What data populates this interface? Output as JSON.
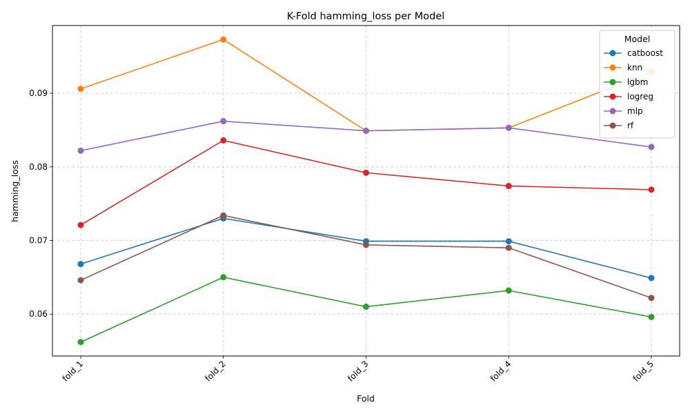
{
  "chart_data": {
    "type": "line",
    "title": "K-Fold hamming_loss per Model",
    "xlabel": "Fold",
    "ylabel": "hamming_loss",
    "categories": [
      "fold_1",
      "fold_2",
      "fold_3",
      "fold_4",
      "fold_5"
    ],
    "ylim": [
      0.0543,
      0.0992
    ],
    "yticks": [
      0.06,
      0.07,
      0.08,
      0.09
    ],
    "ytick_labels": [
      "0.06",
      "0.07",
      "0.08",
      "0.09"
    ],
    "grid": true,
    "legend": {
      "title": "Model",
      "placement": "top-right"
    },
    "series": [
      {
        "name": "catboost",
        "color": "#1f77b4",
        "values": [
          0.0668,
          0.073,
          0.0699,
          0.0699,
          0.0649
        ]
      },
      {
        "name": "knn",
        "color": "#ff7f0e",
        "values": [
          0.0906,
          0.0973,
          0.0849,
          0.0853,
          0.0929
        ]
      },
      {
        "name": "lgbm",
        "color": "#2ca02c",
        "values": [
          0.0562,
          0.065,
          0.061,
          0.0632,
          0.0596
        ]
      },
      {
        "name": "logreg",
        "color": "#d62728",
        "values": [
          0.0721,
          0.0836,
          0.0792,
          0.0774,
          0.0769
        ]
      },
      {
        "name": "mlp",
        "color": "#9467bd",
        "values": [
          0.0822,
          0.0862,
          0.0849,
          0.0853,
          0.0827
        ]
      },
      {
        "name": "rf",
        "color": "#8c564b",
        "values": [
          0.0646,
          0.0734,
          0.0694,
          0.069,
          0.0622
        ]
      }
    ]
  }
}
